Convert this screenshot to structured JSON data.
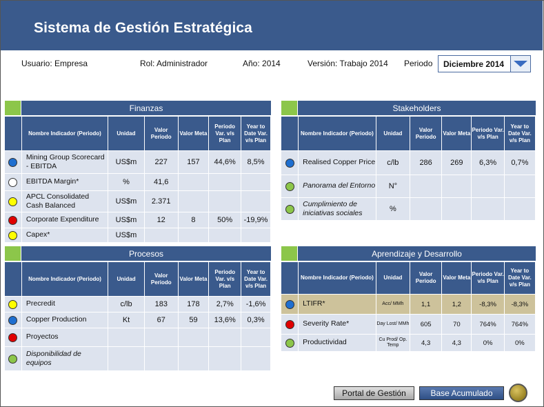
{
  "app": {
    "title": "Sistema de Gestión Estratégica"
  },
  "info": {
    "usuario": "Usuario: Empresa",
    "rol": "Rol: Administrador",
    "anio": "Año: 2014",
    "version": "Versión: Trabajo 2014",
    "periodo_label": "Periodo",
    "periodo_value": "Diciembre 2014"
  },
  "columns": {
    "nombre": "Nombre Indicador (Periodo)",
    "unidad": "Unidad",
    "valor_periodo": "Valor Periodo",
    "valor_meta": "Valor Meta",
    "periodo_var": "Periodo Var. v/s Plan",
    "ytd_var": "Year to Date Var. v/s Plan"
  },
  "colors": {
    "blue": "#1f6fd0",
    "white": "#ffffff",
    "yellow": "#ffff00",
    "red": "#e00000",
    "green": "#8cc64a"
  },
  "finanzas": {
    "title": "Finanzas",
    "rows": [
      {
        "status": "blue",
        "name": "Mining Group Scorecard - EBITDA",
        "unidad": "US$m",
        "valor": "227",
        "meta": "157",
        "var": "44,6%",
        "ytd": "8,5%"
      },
      {
        "status": "white",
        "name": "EBITDA Margin*",
        "unidad": "%",
        "valor": "41,6",
        "meta": "",
        "var": "",
        "ytd": ""
      },
      {
        "status": "yellow",
        "name": "APCL Consolidated Cash Balanced",
        "unidad": "US$m",
        "valor": "2.371",
        "meta": "",
        "var": "",
        "ytd": ""
      },
      {
        "status": "red",
        "name": "Corporate Expenditure",
        "unidad": "US$m",
        "valor": "12",
        "meta": "8",
        "var": "50%",
        "ytd": "-19,9%"
      },
      {
        "status": "yellow",
        "name": "Capex*",
        "unidad": "US$m",
        "valor": "",
        "meta": "",
        "var": "",
        "ytd": ""
      }
    ]
  },
  "stakeholders": {
    "title": "Stakeholders",
    "rows": [
      {
        "status": "blue",
        "name": "Realised Copper Price",
        "unidad": "c/lb",
        "valor": "286",
        "meta": "269",
        "var": "6,3%",
        "ytd": "0,7%"
      },
      {
        "status": "green",
        "name": "Panorama del Entorno",
        "unidad": "N°",
        "valor": "",
        "meta": "",
        "var": "",
        "ytd": ""
      },
      {
        "status": "green",
        "name": "Cumplimiento de iniciativas sociales",
        "unidad": "%",
        "valor": "",
        "meta": "",
        "var": "",
        "ytd": ""
      }
    ]
  },
  "procesos": {
    "title": "Procesos",
    "rows": [
      {
        "status": "yellow",
        "name": "Precredit",
        "unidad": "c/lb",
        "valor": "183",
        "meta": "178",
        "var": "2,7%",
        "ytd": "-1,6%"
      },
      {
        "status": "blue",
        "name": "Copper Production",
        "unidad": "Kt",
        "valor": "67",
        "meta": "59",
        "var": "13,6%",
        "ytd": "0,3%"
      },
      {
        "status": "red",
        "name": "Proyectos",
        "unidad": "",
        "valor": "",
        "meta": "",
        "var": "",
        "ytd": ""
      },
      {
        "status": "green",
        "name": "Disponibilidad de equipos",
        "unidad": "",
        "valor": "",
        "meta": "",
        "var": "",
        "ytd": ""
      }
    ]
  },
  "aprendizaje": {
    "title": "Aprendizaje y Desarrollo",
    "rows": [
      {
        "status": "blue",
        "name": "LTIFR*",
        "unidad": "Acc/ MMh",
        "valor": "1,1",
        "meta": "1,2",
        "var": "-8,3%",
        "ytd": "-8,3%"
      },
      {
        "status": "red",
        "name": "Severity Rate*",
        "unidad": "Day Lost/ MMh",
        "valor": "605",
        "meta": "70",
        "var": "764%",
        "ytd": "764%"
      },
      {
        "status": "green",
        "name": "Productividad",
        "unidad": "Cu Prod/ Op. Temp",
        "valor": "4,3",
        "meta": "4,3",
        "var": "0%",
        "ytd": "0%"
      }
    ]
  },
  "buttons": {
    "portal": "Portal de Gestión",
    "base": "Base Acumulado"
  }
}
